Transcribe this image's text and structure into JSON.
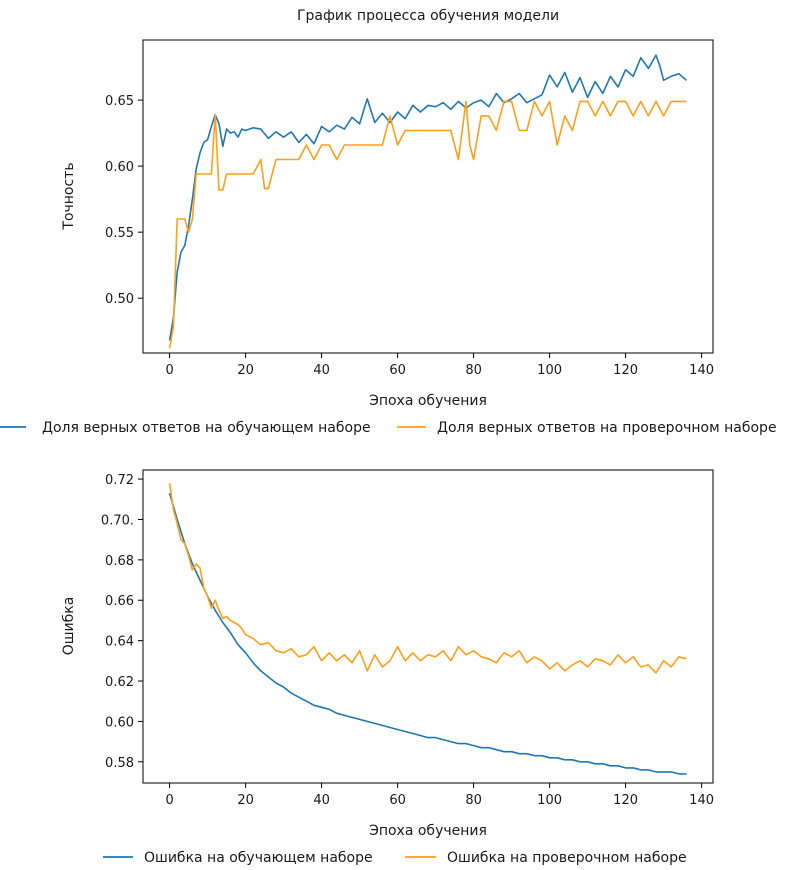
{
  "title": "График процесса обучения модели",
  "colors": {
    "train": "#1f77b4",
    "val": "#ff9f1a"
  },
  "chart_data": [
    {
      "type": "line",
      "title": "График процесса обучения модели",
      "xlabel": "Эпоха обучения",
      "ylabel": "Точность",
      "xlim": [
        -7,
        143
      ],
      "ylim": [
        0.4585,
        0.6955
      ],
      "xticks": [
        0,
        20,
        40,
        60,
        80,
        100,
        120,
        140
      ],
      "yticks": [
        0.5,
        0.55,
        0.6,
        0.65
      ],
      "ytick_labels": [
        "0.50",
        "0.55",
        "0.60",
        "0.65"
      ],
      "legend_position": "below",
      "series": [
        {
          "name": "Доля верных ответов на обучающем наборе",
          "color": "#1f77b4",
          "x": [
            0,
            1,
            2,
            3,
            4,
            5,
            6,
            7,
            8,
            9,
            10,
            11,
            12,
            13,
            14,
            15,
            16,
            17,
            18,
            19,
            20,
            22,
            24,
            26,
            28,
            30,
            32,
            34,
            36,
            38,
            40,
            42,
            44,
            46,
            48,
            50,
            52,
            54,
            56,
            58,
            60,
            62,
            64,
            66,
            68,
            70,
            72,
            74,
            76,
            78,
            80,
            82,
            84,
            86,
            88,
            90,
            92,
            94,
            96,
            98,
            100,
            102,
            104,
            106,
            108,
            110,
            112,
            114,
            116,
            118,
            120,
            122,
            124,
            126,
            128,
            129,
            130,
            132,
            134,
            136
          ],
          "values": [
            0.468,
            0.485,
            0.52,
            0.535,
            0.54,
            0.555,
            0.575,
            0.598,
            0.61,
            0.618,
            0.62,
            0.63,
            0.639,
            0.632,
            0.615,
            0.628,
            0.625,
            0.626,
            0.622,
            0.628,
            0.627,
            0.629,
            0.628,
            0.621,
            0.626,
            0.622,
            0.626,
            0.618,
            0.624,
            0.617,
            0.63,
            0.626,
            0.631,
            0.628,
            0.637,
            0.632,
            0.651,
            0.633,
            0.64,
            0.633,
            0.641,
            0.636,
            0.646,
            0.641,
            0.646,
            0.645,
            0.648,
            0.643,
            0.649,
            0.644,
            0.648,
            0.65,
            0.645,
            0.655,
            0.648,
            0.651,
            0.655,
            0.648,
            0.651,
            0.654,
            0.669,
            0.66,
            0.671,
            0.656,
            0.667,
            0.652,
            0.664,
            0.655,
            0.668,
            0.66,
            0.673,
            0.668,
            0.682,
            0.674,
            0.684,
            0.676,
            0.665,
            0.668,
            0.67,
            0.665
          ]
        },
        {
          "name": "Доля верных ответов на проверочном наборе",
          "color": "#ff9f1a",
          "x": [
            0,
            1,
            2,
            3,
            4,
            5,
            6,
            7,
            8,
            9,
            10,
            11,
            12,
            13,
            14,
            15,
            16,
            18,
            20,
            22,
            24,
            25,
            26,
            28,
            30,
            32,
            34,
            36,
            38,
            40,
            42,
            44,
            46,
            48,
            50,
            52,
            54,
            56,
            58,
            60,
            62,
            64,
            66,
            68,
            70,
            72,
            74,
            76,
            78,
            79,
            80,
            82,
            84,
            86,
            88,
            90,
            92,
            94,
            96,
            98,
            100,
            102,
            104,
            106,
            108,
            110,
            112,
            114,
            116,
            118,
            120,
            122,
            124,
            126,
            128,
            130,
            132,
            134,
            136
          ],
          "values": [
            0.462,
            0.478,
            0.56,
            0.56,
            0.56,
            0.55,
            0.56,
            0.594,
            0.594,
            0.594,
            0.594,
            0.594,
            0.639,
            0.582,
            0.582,
            0.594,
            0.594,
            0.594,
            0.594,
            0.594,
            0.605,
            0.583,
            0.583,
            0.605,
            0.605,
            0.605,
            0.605,
            0.616,
            0.605,
            0.616,
            0.616,
            0.605,
            0.616,
            0.616,
            0.616,
            0.616,
            0.616,
            0.616,
            0.638,
            0.616,
            0.627,
            0.627,
            0.627,
            0.627,
            0.627,
            0.627,
            0.627,
            0.605,
            0.649,
            0.616,
            0.605,
            0.638,
            0.638,
            0.627,
            0.649,
            0.649,
            0.627,
            0.627,
            0.649,
            0.638,
            0.649,
            0.616,
            0.638,
            0.627,
            0.649,
            0.649,
            0.638,
            0.649,
            0.638,
            0.649,
            0.649,
            0.638,
            0.649,
            0.638,
            0.649,
            0.638,
            0.649,
            0.649,
            0.649
          ]
        }
      ]
    },
    {
      "type": "line",
      "title": "",
      "xlabel": "Эпоха обучения",
      "ylabel": "Ошибка",
      "xlim": [
        -7,
        143
      ],
      "ylim": [
        0.5695,
        0.7245
      ],
      "xticks": [
        0,
        20,
        40,
        60,
        80,
        100,
        120,
        140
      ],
      "yticks": [
        0.58,
        0.6,
        0.62,
        0.64,
        0.66,
        0.68,
        0.7,
        0.72
      ],
      "ytick_labels": [
        "0.58",
        "0.60",
        "0.62",
        "0.64",
        "0.66",
        "0.68",
        "0.70.",
        "0.72"
      ],
      "legend_position": "below",
      "series": [
        {
          "name": "Ошибка на обучающем наборе",
          "color": "#1f77b4",
          "x": [
            0,
            2,
            4,
            6,
            8,
            10,
            12,
            14,
            16,
            18,
            20,
            22,
            24,
            26,
            28,
            30,
            32,
            34,
            36,
            38,
            40,
            42,
            44,
            46,
            48,
            50,
            52,
            54,
            56,
            58,
            60,
            62,
            64,
            66,
            68,
            70,
            72,
            74,
            76,
            78,
            80,
            82,
            84,
            86,
            88,
            90,
            92,
            94,
            96,
            98,
            100,
            102,
            104,
            106,
            108,
            110,
            112,
            114,
            116,
            118,
            120,
            122,
            124,
            126,
            128,
            130,
            132,
            134,
            136
          ],
          "values": [
            0.713,
            0.7,
            0.688,
            0.678,
            0.67,
            0.662,
            0.655,
            0.649,
            0.644,
            0.638,
            0.634,
            0.629,
            0.625,
            0.622,
            0.619,
            0.617,
            0.614,
            0.612,
            0.61,
            0.608,
            0.607,
            0.606,
            0.604,
            0.603,
            0.602,
            0.601,
            0.6,
            0.599,
            0.598,
            0.597,
            0.596,
            0.595,
            0.594,
            0.593,
            0.592,
            0.592,
            0.591,
            0.59,
            0.589,
            0.589,
            0.588,
            0.587,
            0.587,
            0.586,
            0.585,
            0.585,
            0.584,
            0.584,
            0.583,
            0.583,
            0.582,
            0.582,
            0.581,
            0.581,
            0.58,
            0.58,
            0.579,
            0.579,
            0.578,
            0.578,
            0.577,
            0.577,
            0.576,
            0.576,
            0.575,
            0.575,
            0.575,
            0.574,
            0.574
          ]
        },
        {
          "name": "Ошибка на проверочном наборе",
          "color": "#ff9f1a",
          "x": [
            0,
            1,
            2,
            3,
            4,
            5,
            6,
            7,
            8,
            9,
            10,
            11,
            12,
            13,
            14,
            15,
            16,
            17,
            18,
            19,
            20,
            22,
            24,
            26,
            28,
            30,
            32,
            34,
            36,
            38,
            40,
            42,
            44,
            46,
            48,
            50,
            52,
            54,
            56,
            58,
            60,
            62,
            64,
            66,
            68,
            70,
            72,
            74,
            76,
            78,
            80,
            82,
            84,
            86,
            88,
            90,
            92,
            94,
            96,
            98,
            100,
            102,
            104,
            106,
            108,
            110,
            112,
            114,
            116,
            118,
            120,
            122,
            124,
            126,
            128,
            130,
            132,
            134,
            136
          ],
          "values": [
            0.718,
            0.705,
            0.698,
            0.69,
            0.688,
            0.682,
            0.675,
            0.678,
            0.676,
            0.666,
            0.662,
            0.656,
            0.66,
            0.655,
            0.651,
            0.652,
            0.65,
            0.649,
            0.648,
            0.646,
            0.643,
            0.641,
            0.638,
            0.639,
            0.635,
            0.634,
            0.636,
            0.632,
            0.633,
            0.637,
            0.63,
            0.634,
            0.63,
            0.633,
            0.629,
            0.635,
            0.625,
            0.633,
            0.627,
            0.63,
            0.637,
            0.63,
            0.634,
            0.63,
            0.633,
            0.632,
            0.635,
            0.63,
            0.637,
            0.633,
            0.635,
            0.632,
            0.631,
            0.629,
            0.634,
            0.632,
            0.635,
            0.629,
            0.632,
            0.63,
            0.626,
            0.629,
            0.625,
            0.628,
            0.63,
            0.627,
            0.631,
            0.63,
            0.628,
            0.633,
            0.629,
            0.632,
            0.627,
            0.628,
            0.624,
            0.63,
            0.627,
            0.632,
            0.631
          ]
        }
      ]
    }
  ]
}
